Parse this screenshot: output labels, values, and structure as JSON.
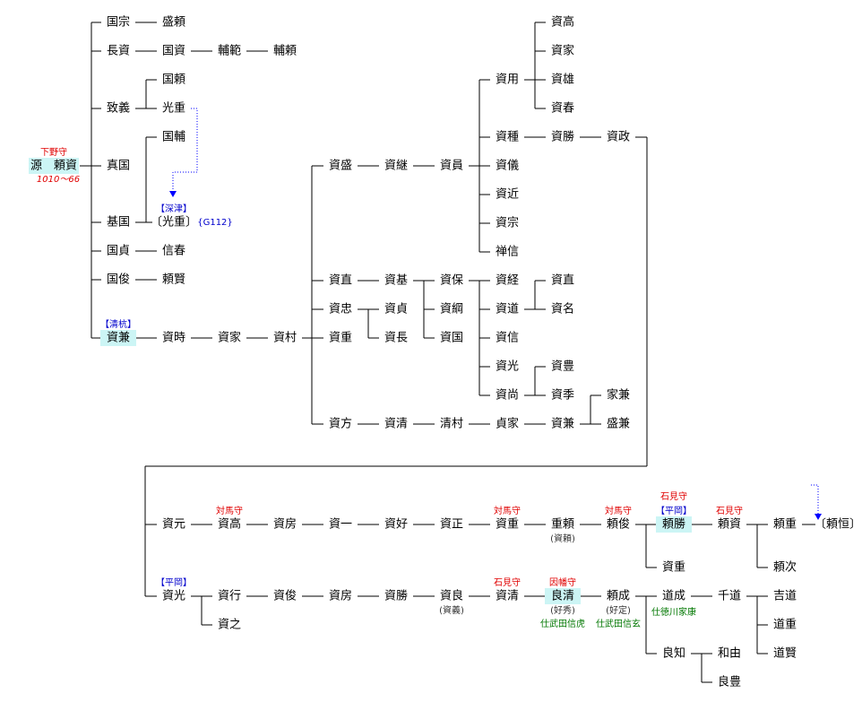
{
  "nodes": [
    {
      "label": "源　頼資",
      "title": "下野守",
      "dates": "1010〜66",
      "highlight": true
    },
    {
      "label": "国宗"
    },
    {
      "label": "盛頼"
    },
    {
      "label": "長資"
    },
    {
      "label": "国資"
    },
    {
      "label": "輔範"
    },
    {
      "label": "輔頼"
    },
    {
      "label": "致義"
    },
    {
      "label": "国頼"
    },
    {
      "label": "光重"
    },
    {
      "label": "真国"
    },
    {
      "label": "基国"
    },
    {
      "label": "国輔"
    },
    {
      "label": "〔光重〕",
      "tag": "【深津】",
      "ref": "{G112}"
    },
    {
      "label": "国貞"
    },
    {
      "label": "信春"
    },
    {
      "label": "国俊"
    },
    {
      "label": "頼賢"
    },
    {
      "label": "資兼",
      "tag": "【清杭】",
      "highlight": true
    },
    {
      "label": "資時"
    },
    {
      "label": "資家"
    },
    {
      "label": "資村"
    },
    {
      "label": "資盛"
    },
    {
      "label": "資継"
    },
    {
      "label": "資員"
    },
    {
      "label": "資用"
    },
    {
      "label": "資種"
    },
    {
      "label": "資儀"
    },
    {
      "label": "資近"
    },
    {
      "label": "資宗"
    },
    {
      "label": "禅信"
    },
    {
      "label": "資高"
    },
    {
      "label": "資家"
    },
    {
      "label": "資雄"
    },
    {
      "label": "資春"
    },
    {
      "label": "資勝"
    },
    {
      "label": "資政"
    },
    {
      "label": "資直"
    },
    {
      "label": "資基"
    },
    {
      "label": "資保"
    },
    {
      "label": "資綱"
    },
    {
      "label": "資国"
    },
    {
      "label": "資経"
    },
    {
      "label": "資道"
    },
    {
      "label": "資信"
    },
    {
      "label": "資光"
    },
    {
      "label": "資尚"
    },
    {
      "label": "資直"
    },
    {
      "label": "資名"
    },
    {
      "label": "資豊"
    },
    {
      "label": "資季"
    },
    {
      "label": "資忠"
    },
    {
      "label": "資貞"
    },
    {
      "label": "資長"
    },
    {
      "label": "資重"
    },
    {
      "label": "資方"
    },
    {
      "label": "資清"
    },
    {
      "label": "清村"
    },
    {
      "label": "貞家"
    },
    {
      "label": "資兼"
    },
    {
      "label": "家兼"
    },
    {
      "label": "盛兼"
    },
    {
      "label": "資元"
    },
    {
      "label": "資高",
      "title": "対馬守"
    },
    {
      "label": "資房"
    },
    {
      "label": "資一"
    },
    {
      "label": "資好"
    },
    {
      "label": "資正"
    },
    {
      "label": "資重",
      "title": "対馬守"
    },
    {
      "label": "重頼",
      "alias": "(資頼)"
    },
    {
      "label": "頼俊",
      "title": "対馬守"
    },
    {
      "label": "頼勝",
      "title": "石見守",
      "tag": "【平岡】",
      "highlight": true
    },
    {
      "label": "資重"
    },
    {
      "label": "頼資",
      "title": "石見守"
    },
    {
      "label": "頼重"
    },
    {
      "label": "頼次"
    },
    {
      "label": "〔頼恒〕"
    },
    {
      "label": "資光",
      "tag": "【平岡】"
    },
    {
      "label": "資行"
    },
    {
      "label": "資之"
    },
    {
      "label": "資俊"
    },
    {
      "label": "資房"
    },
    {
      "label": "資勝"
    },
    {
      "label": "資良",
      "alias": "(資義)"
    },
    {
      "label": "資清",
      "title": "石見守"
    },
    {
      "label": "良清",
      "title": "因幡守",
      "alias": "(好秀)",
      "service": "仕武田信虎",
      "highlight": true
    },
    {
      "label": "頼成",
      "alias": "(好定)",
      "service": "仕武田信玄"
    },
    {
      "label": "道成",
      "service": "仕徳川家康"
    },
    {
      "label": "千道"
    },
    {
      "label": "吉道"
    },
    {
      "label": "道重"
    },
    {
      "label": "道賢"
    },
    {
      "label": "良知"
    },
    {
      "label": "和由"
    },
    {
      "label": "良豊"
    }
  ]
}
